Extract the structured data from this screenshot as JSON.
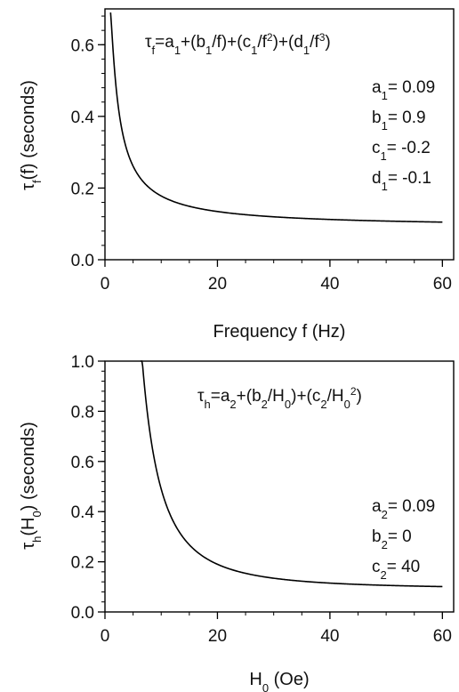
{
  "chart_data": [
    {
      "type": "line",
      "xlabel": "Frequency  f (Hz)",
      "ylabel": {
        "base": "τ",
        "sub": "f",
        "rest": "(f)  (seconds)"
      },
      "xlim": [
        0,
        62
      ],
      "ylim": [
        0,
        0.7
      ],
      "xticks": [
        0,
        20,
        40,
        60
      ],
      "xtick_labels": [
        "0",
        "20",
        "40",
        "60"
      ],
      "yticks": [
        0.0,
        0.2,
        0.4,
        0.6
      ],
      "ytick_labels": [
        "0.0",
        "0.2",
        "0.4",
        "0.6"
      ],
      "equation": [
        {
          "t": "τ"
        },
        {
          "t": "f",
          "s": "sub"
        },
        {
          "t": "=a"
        },
        {
          "t": "1",
          "s": "sub"
        },
        {
          "t": "+(b"
        },
        {
          "t": "1",
          "s": "sub"
        },
        {
          "t": "/f)+(c"
        },
        {
          "t": "1",
          "s": "sub"
        },
        {
          "t": "/f"
        },
        {
          "t": "2",
          "s": "sup"
        },
        {
          "t": ")+(d"
        },
        {
          "t": "1",
          "s": "sub"
        },
        {
          "t": "/f"
        },
        {
          "t": "3",
          "s": "sup"
        },
        {
          "t": ")"
        }
      ],
      "params": [
        [
          {
            "t": "a"
          },
          {
            "t": "1",
            "s": "sub"
          },
          {
            "t": "= 0.09"
          }
        ],
        [
          {
            "t": "b"
          },
          {
            "t": "1",
            "s": "sub"
          },
          {
            "t": "= 0.9"
          }
        ],
        [
          {
            "t": "c"
          },
          {
            "t": "1",
            "s": "sub"
          },
          {
            "t": "= -0.2"
          }
        ],
        [
          {
            "t": "d"
          },
          {
            "t": "1",
            "s": "sub"
          },
          {
            "t": "= -0.1"
          }
        ]
      ],
      "model": {
        "a": 0.09,
        "b": 0.9,
        "c": -0.2,
        "d": -0.1
      },
      "x_range": [
        1,
        60
      ],
      "grid": false,
      "legend": "none"
    },
    {
      "type": "line",
      "xlabel": {
        "base": "H",
        "sub": "0",
        "rest": " (Oe)"
      },
      "ylabel": {
        "parts": [
          {
            "t": "τ"
          },
          {
            "t": "h",
            "s": "sub"
          },
          {
            "t": "(H"
          },
          {
            "t": "0",
            "s": "sub"
          },
          {
            "t": ")  (seconds)"
          }
        ]
      },
      "xlim": [
        0,
        62
      ],
      "ylim": [
        0,
        1.0
      ],
      "xticks": [
        0,
        20,
        40,
        60
      ],
      "xtick_labels": [
        "0",
        "20",
        "40",
        "60"
      ],
      "yticks": [
        0.0,
        0.2,
        0.4,
        0.6,
        0.8,
        1.0
      ],
      "ytick_labels": [
        "0.0",
        "0.2",
        "0.4",
        "0.6",
        "0.8",
        "1.0"
      ],
      "equation": [
        {
          "t": "τ"
        },
        {
          "t": "h",
          "s": "sub"
        },
        {
          "t": "=a"
        },
        {
          "t": "2",
          "s": "sub"
        },
        {
          "t": "+(b"
        },
        {
          "t": "2",
          "s": "sub"
        },
        {
          "t": "/H"
        },
        {
          "t": "0",
          "s": "sub"
        },
        {
          "t": ")+(c"
        },
        {
          "t": "2",
          "s": "sub"
        },
        {
          "t": "/H"
        },
        {
          "t": "0",
          "s": "sub"
        },
        {
          "t": "2",
          "s": "sup"
        },
        {
          "t": ")"
        }
      ],
      "params": [
        [
          {
            "t": "a"
          },
          {
            "t": "2",
            "s": "sub"
          },
          {
            "t": "= 0.09"
          }
        ],
        [
          {
            "t": "b"
          },
          {
            "t": "2",
            "s": "sub"
          },
          {
            "t": "= 0"
          }
        ],
        [
          {
            "t": "c"
          },
          {
            "t": "2",
            "s": "sub"
          },
          {
            "t": "= 40"
          }
        ]
      ],
      "model": {
        "a": 0.09,
        "b": 0,
        "c": 40
      },
      "x_range": [
        6.3,
        60
      ],
      "grid": false,
      "legend": "none"
    }
  ]
}
